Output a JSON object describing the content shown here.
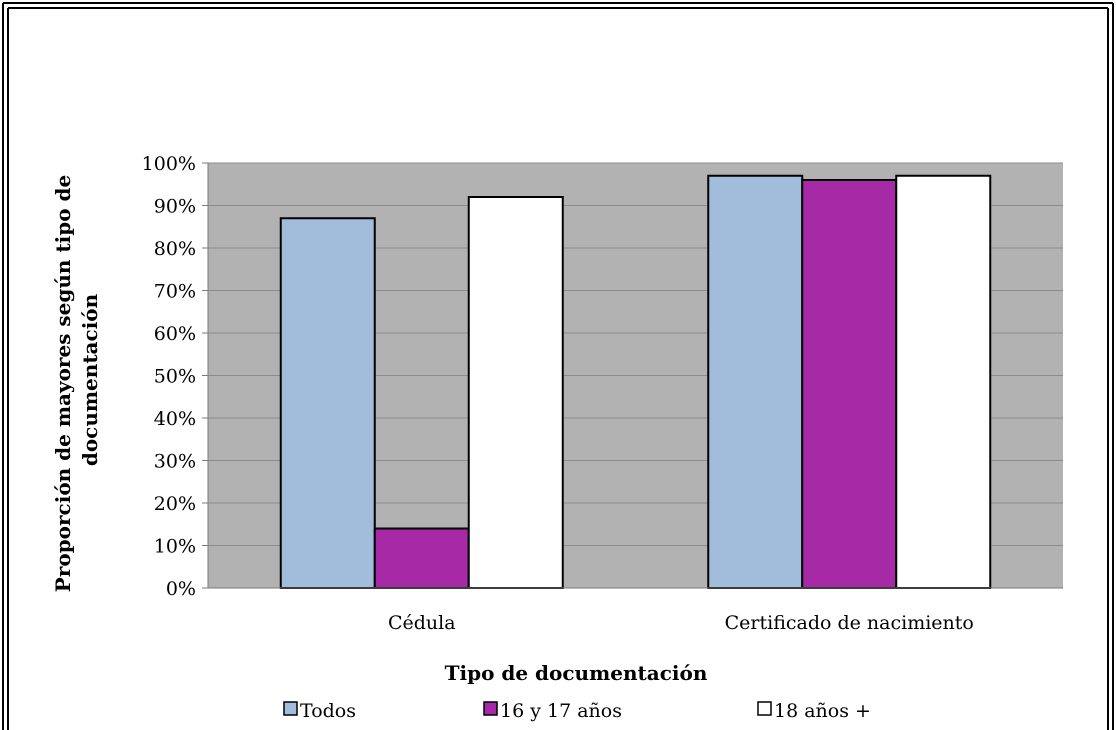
{
  "chart_data": {
    "type": "bar",
    "title": "",
    "xlabel": "Tipo de documentación",
    "ylabel_lines": [
      "Proporción de mayores según tipo de",
      "documentación"
    ],
    "categories": [
      "Cédula",
      "Certificado de nacimiento"
    ],
    "series": [
      {
        "name": "Todos",
        "values": [
          87,
          97
        ],
        "color": "#a2bcdc"
      },
      {
        "name": "16 y 17 años",
        "values": [
          14,
          96
        ],
        "color": "#a62aa6"
      },
      {
        "name": "18 años +",
        "values": [
          92,
          97
        ],
        "color": "#ffffff"
      }
    ],
    "ylim": [
      0,
      100
    ],
    "y_ticks": [
      "0%",
      "10%",
      "20%",
      "30%",
      "40%",
      "50%",
      "60%",
      "70%",
      "80%",
      "90%",
      "100%"
    ],
    "grid": true,
    "plot_background": "#b2b2b2",
    "legend_position": "bottom"
  }
}
